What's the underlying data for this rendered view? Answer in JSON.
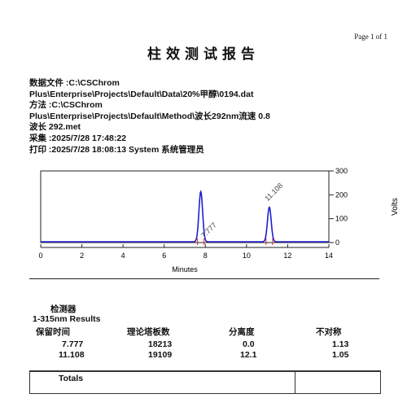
{
  "page": {
    "number": "Page 1 of 1"
  },
  "report": {
    "title": "柱效测试报告"
  },
  "header": {
    "line1": "数据文件 :C:\\CSChrom",
    "line2": "Plus\\Enterprise\\Projects\\Default\\Data\\20%甲醇\\0194.dat",
    "line3": "方法 :C:\\CSChrom",
    "line4": "Plus\\Enterprise\\Projects\\Default\\Method\\波长292nm流速 0.8",
    "line5": "波长 292.met",
    "line6": "采集 :2025/7/28 17:48:22",
    "line7": "打印 :2025/7/28 18:08:13 System 系统管理员"
  },
  "chart_data": {
    "type": "line",
    "xlabel": "Minutes",
    "ylabel": "Volts",
    "xlim": [
      0,
      14
    ],
    "ylim": [
      0,
      300
    ],
    "x_ticks": [
      "0",
      "2",
      "4",
      "6",
      "8",
      "10",
      "12",
      "14"
    ],
    "y_ticks": [
      "0",
      "100",
      "200",
      "300"
    ],
    "color": "#1f1fd0",
    "peaks": [
      {
        "label": "7.777",
        "rt": 7.777,
        "height": 210
      },
      {
        "label": "11.108",
        "rt": 11.108,
        "height": 145
      }
    ]
  },
  "results": {
    "detector": "检测器",
    "subtitle": "1-315nm Results",
    "columns": [
      "保留时间",
      "理论塔板数",
      "分离度",
      "不对称"
    ],
    "rows": [
      [
        "7.777",
        "18213",
        "0.0",
        "1.13"
      ],
      [
        "11.108",
        "19109",
        "12.1",
        "1.05"
      ]
    ],
    "totals_label": "Totals"
  }
}
